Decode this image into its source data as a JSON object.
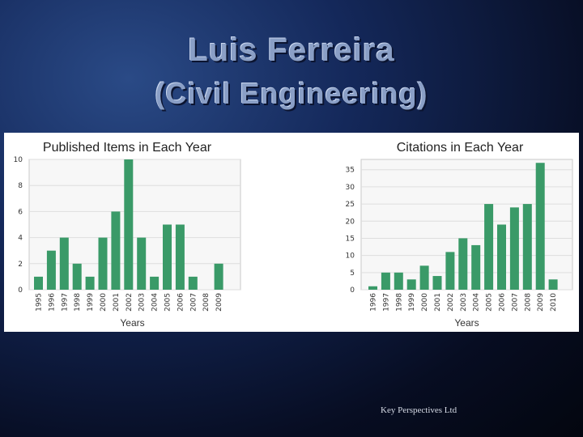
{
  "slide": {
    "title": "Luis Ferreira",
    "subtitle": "(Civil Engineering)",
    "footer": "Key Perspectives Ltd"
  },
  "chart_data": [
    {
      "type": "bar",
      "title": "Published Items in Each Year",
      "xlabel": "Years",
      "ylabel": "",
      "categories": [
        "1995",
        "1996",
        "1997",
        "1998",
        "1999",
        "2000",
        "2001",
        "2002",
        "2003",
        "2004",
        "2005",
        "2006",
        "2007",
        "2008",
        "2009"
      ],
      "values": [
        1,
        3,
        4,
        2,
        1,
        4,
        6,
        10,
        4,
        1,
        5,
        5,
        1,
        0,
        2
      ],
      "ylim": [
        0,
        10
      ],
      "yticks": [
        0,
        2,
        4,
        6,
        8,
        10
      ],
      "grid": true,
      "bar_color": "#3a9a68"
    },
    {
      "type": "bar",
      "title": "Citations in Each Year",
      "xlabel": "Years",
      "ylabel": "",
      "categories": [
        "1996",
        "1997",
        "1998",
        "1999",
        "2000",
        "2001",
        "2002",
        "2003",
        "2004",
        "2005",
        "2006",
        "2007",
        "2008",
        "2009",
        "2010"
      ],
      "values": [
        1,
        5,
        5,
        3,
        7,
        4,
        11,
        15,
        13,
        25,
        19,
        24,
        25,
        37,
        3
      ],
      "ylim": [
        0,
        38
      ],
      "yticks": [
        0,
        5,
        10,
        15,
        20,
        25,
        30,
        35
      ],
      "grid": true,
      "bar_color": "#3a9a68"
    }
  ]
}
